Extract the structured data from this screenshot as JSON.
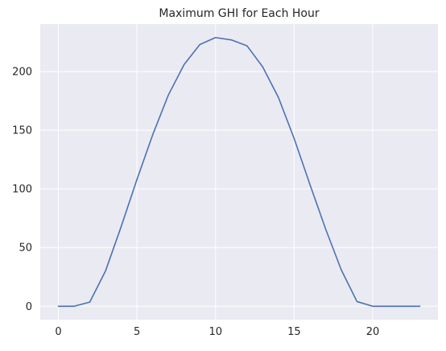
{
  "chart_data": {
    "type": "line",
    "title": "Maximum GHI for Each Hour",
    "xlabel": "",
    "ylabel": "",
    "x": [
      0,
      1,
      2,
      3,
      4,
      5,
      6,
      7,
      8,
      9,
      10,
      11,
      12,
      13,
      14,
      15,
      16,
      17,
      18,
      19,
      20,
      21,
      22,
      23
    ],
    "series": [
      {
        "values": [
          0,
          0,
          3.5,
          30,
          68,
          108,
          146,
          180,
          206,
          223,
          229,
          227,
          222,
          204,
          178,
          143,
          104,
          66,
          31,
          4,
          0,
          0,
          0,
          0
        ]
      }
    ],
    "xlim": [
      -1.15,
      24.15
    ],
    "ylim": [
      -11.45,
      240.45
    ],
    "xticks": [
      0,
      5,
      10,
      15,
      20
    ],
    "yticks": [
      0,
      50,
      100,
      150,
      200
    ],
    "grid": true,
    "legend": "none",
    "colors": {
      "background": "#eaeaf2",
      "grid": "#ffffff",
      "line": "#4c72b0",
      "text": "#262626"
    }
  }
}
